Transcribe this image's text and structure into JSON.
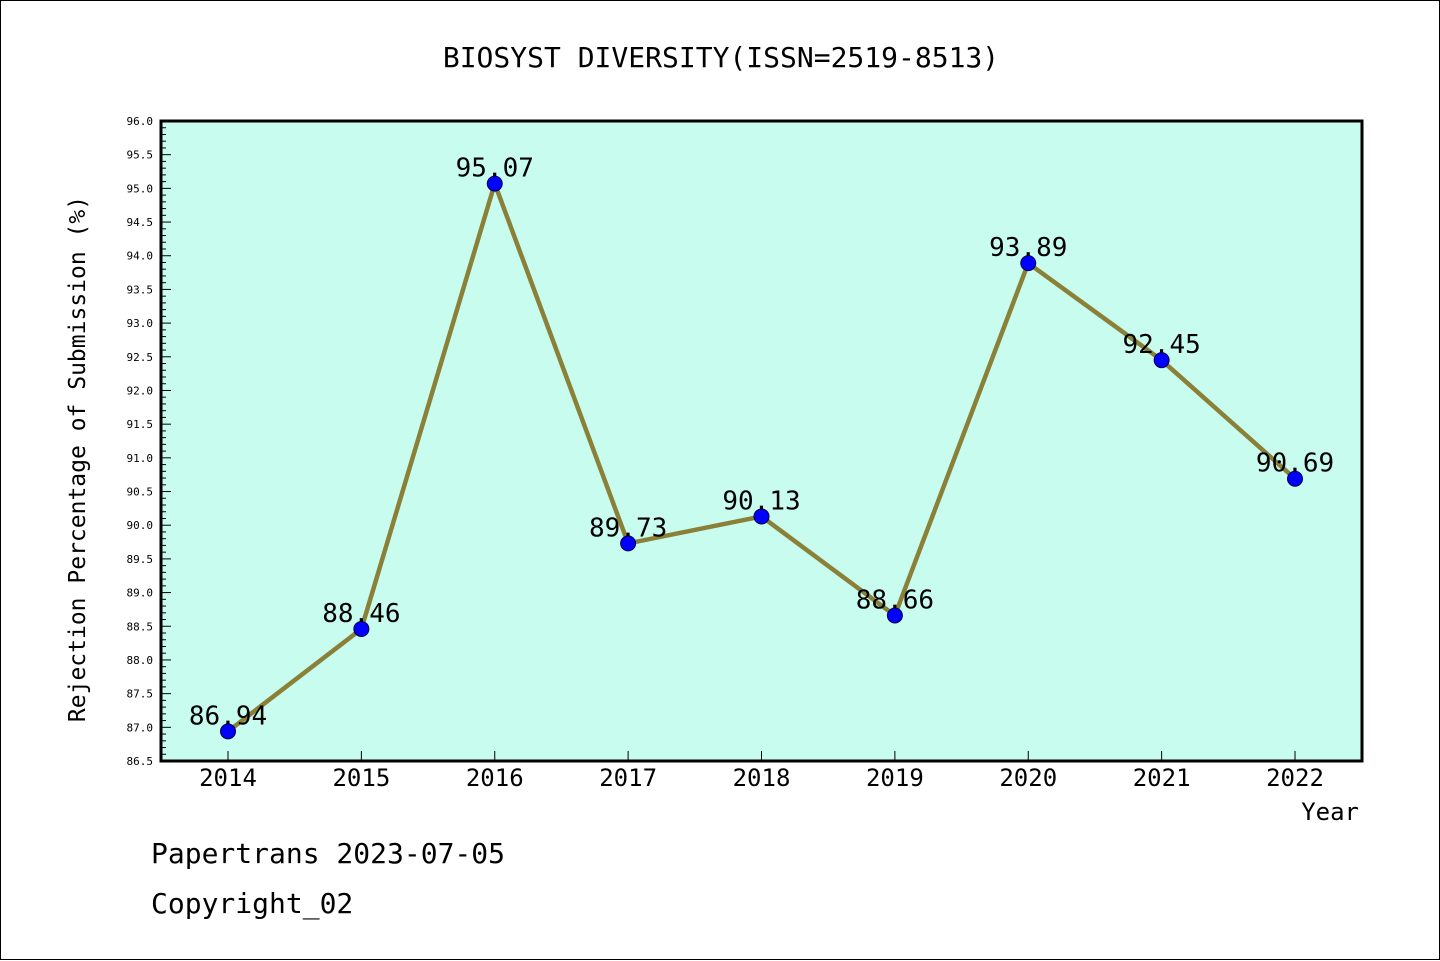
{
  "chart_data": {
    "type": "line",
    "title": "BIOSYST DIVERSITY(ISSN=2519-8513)",
    "xlabel": "Year",
    "ylabel": "Rejection Percentage of Submission (%)",
    "categories": [
      "2014",
      "2015",
      "2016",
      "2017",
      "2018",
      "2019",
      "2020",
      "2021",
      "2022"
    ],
    "series": [
      {
        "values": [
          86.94,
          88.46,
          95.07,
          89.73,
          90.13,
          88.66,
          93.89,
          92.45,
          90.69
        ],
        "labels": [
          "86.94",
          "88.46",
          "95.07",
          "89.73",
          "90.13",
          "88.66",
          "93.89",
          "92.45",
          "90.69"
        ]
      }
    ],
    "ylim": [
      86.5,
      96.0
    ],
    "yticks": [
      "86.5",
      "87.0",
      "87.5",
      "88.0",
      "88.5",
      "89.0",
      "89.5",
      "90.0",
      "90.5",
      "91.0",
      "91.5",
      "92.0",
      "92.5",
      "93.0",
      "93.5",
      "94.0",
      "94.5",
      "95.0",
      "95.5",
      "96.0"
    ],
    "grid": false,
    "legend": "none",
    "colors": {
      "plot_background": "#c8fcee",
      "line": "#8b8038",
      "marker": "#0000ff"
    }
  },
  "footer": {
    "line1": "Papertrans 2023-07-05",
    "line2": "Copyright_02"
  }
}
